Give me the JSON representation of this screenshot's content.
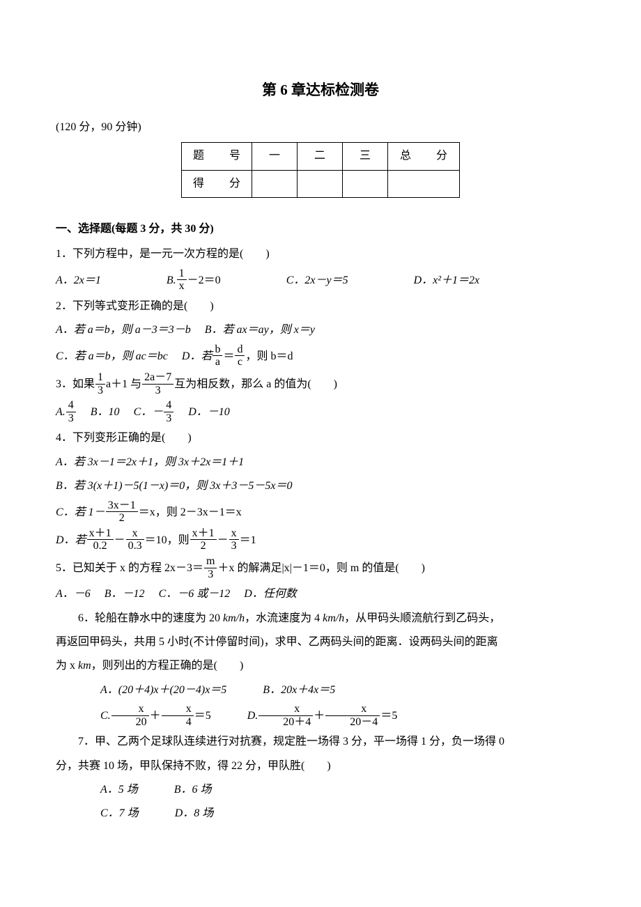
{
  "title": "第 6 章达标检测卷",
  "examInfo": "(120 分，90 分钟)",
  "scoreTable": {
    "headers": [
      "题　号",
      "一",
      "二",
      "三",
      "总　分"
    ],
    "row2Label": "得　分"
  },
  "section1": {
    "header": "一、选择题(每题 3 分，共 30 分)",
    "q1": {
      "stem": "1．下列方程中，是一元一次方程的是(　　)",
      "A_prefix": "A．2x＝1",
      "B_prefix": "B.",
      "B_frac_num": "1",
      "B_frac_den": "x",
      "B_suffix": "－2＝0",
      "C": "C．2x－y＝5",
      "D": "D．x²＋1＝2x"
    },
    "q2": {
      "stem": "2．下列等式变形正确的是(　　)",
      "A": "A．若 a＝b，则 a－3＝3－b",
      "B": "B．若 ax＝ay，则 x＝y",
      "C": "C．若 a＝b，则 ac＝bc",
      "D_prefix": "D．若",
      "D_frac1_num": "b",
      "D_frac1_den": "a",
      "D_eq": "＝",
      "D_frac2_num": "d",
      "D_frac2_den": "c",
      "D_suffix": "，则 b＝d"
    },
    "q3": {
      "stem_prefix": "3．如果",
      "frac1_num": "1",
      "frac1_den": "3",
      "mid1": "a＋1 与",
      "frac2_num": "2a－7",
      "frac2_den": "3",
      "stem_suffix": "互为相反数，那么 a 的值为(　　)",
      "A_prefix": "A.",
      "A_frac_num": "4",
      "A_frac_den": "3",
      "B": "B．10",
      "C_prefix": "C．－",
      "C_frac_num": "4",
      "C_frac_den": "3",
      "D": "D．－10"
    },
    "q4": {
      "stem": "4．下列变形正确的是(　　)",
      "A": "A．若 3x－1＝2x＋1，则 3x＋2x＝1＋1",
      "B": "B．若 3(x＋1)－5(1－x)＝0，则 3x＋3－5－5x＝0",
      "C_prefix": "C．若 1－",
      "C_frac_num": "3x－1",
      "C_frac_den": "2",
      "C_suffix": "＝x，则 2－3x－1＝x",
      "D_prefix": "D．若",
      "D_f1_num": "x＋1",
      "D_f1_den": "0.2",
      "D_minus1": "－",
      "D_f2_num": "x",
      "D_f2_den": "0.3",
      "D_mid": "＝10，则",
      "D_f3_num": "x＋1",
      "D_f3_den": "2",
      "D_minus2": "－",
      "D_f4_num": "x",
      "D_f4_den": "3",
      "D_suffix": "＝1"
    },
    "q5": {
      "stem_prefix": "5．已知关于 x 的方程 2x－3＝",
      "frac_num": "m",
      "frac_den": "3",
      "stem_suffix": "＋x 的解满足|x|－1＝0，则 m 的值是(　　)",
      "A": "A．－6",
      "B": "B．－12",
      "C": "C．－6 或－12",
      "D": "D．任何数"
    },
    "q6": {
      "line1_a": "6．轮船在静水中的速度为 20 ",
      "line1_b": "，水流速度为 4 ",
      "line1_c": "，从甲码头顺流航行到乙码头，",
      "line2": "再返回甲码头，共用 5 小时(不计停留时间)，求甲、乙两码头间的距离．设两码头间的距离",
      "line3_a": "为 x ",
      "line3_b": "，则列出的方程正确的是(　　)",
      "A": "A．(20＋4)x＋(20－4)x＝5",
      "B": "B．20x＋4x＝5",
      "C_prefix": "C.",
      "C_f1_num": "x",
      "C_f1_den": "20",
      "C_plus": "＋",
      "C_f2_num": "x",
      "C_f2_den": "4",
      "C_suffix": "＝5",
      "D_prefix": "D.",
      "D_f1_num": "x",
      "D_f1_den": "20＋4",
      "D_plus": "＋",
      "D_f2_num": "x",
      "D_f2_den": "20－4",
      "D_suffix": "＝5"
    },
    "q7": {
      "line1": "7．甲、乙两个足球队连续进行对抗赛，规定胜一场得 3 分，平一场得 1 分，负一场得 0",
      "line2": "分，共赛 10 场，甲队保持不败，得 22 分，甲队胜(　　)",
      "A": "A．5 场",
      "B": "B．6 场",
      "C": "C．7 场",
      "D": "D．8 场"
    }
  },
  "unit_kmh": "km/h",
  "unit_km": "km"
}
